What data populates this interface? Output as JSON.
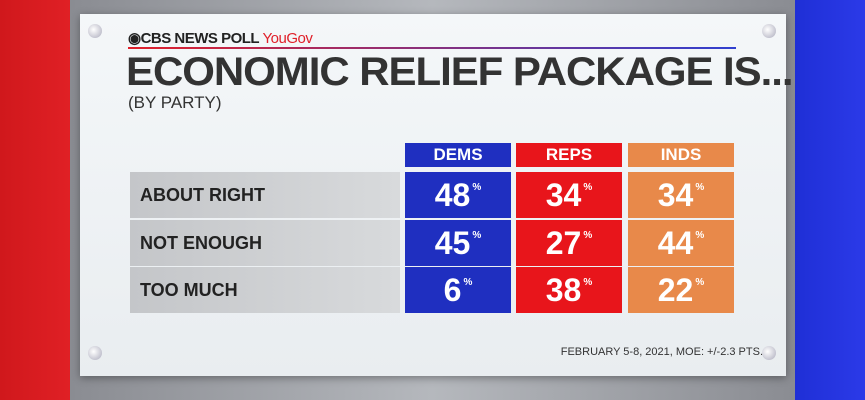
{
  "brand": {
    "network": "CBS NEWS POLL",
    "partner": "YouGov"
  },
  "title": "ECONOMIC RELIEF PACKAGE IS...",
  "subtitle": "(BY PARTY)",
  "footnote": "FEBRUARY 5-8, 2021, MOE: +/-2.3 PTS.",
  "chart_data": {
    "type": "table",
    "title": "ECONOMIC RELIEF PACKAGE IS...",
    "subtitle": "(BY PARTY)",
    "columns": [
      {
        "name": "DEMS",
        "color": "#1f2fc0"
      },
      {
        "name": "REPS",
        "color": "#e8151b"
      },
      {
        "name": "INDS",
        "color": "#e8894a"
      }
    ],
    "rows": [
      {
        "label": "ABOUT RIGHT",
        "values": [
          48,
          34,
          34
        ]
      },
      {
        "label": "NOT ENOUGH",
        "values": [
          45,
          27,
          44
        ]
      },
      {
        "label": "TOO MUCH",
        "values": [
          6,
          38,
          22
        ]
      }
    ],
    "unit": "%"
  }
}
